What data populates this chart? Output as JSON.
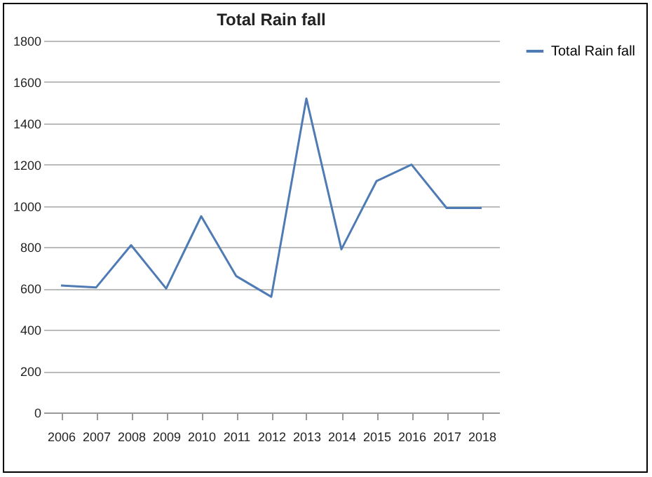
{
  "chart_data": {
    "type": "line",
    "title": "Total Rain fall",
    "categories": [
      "2006",
      "2007",
      "2008",
      "2009",
      "2010",
      "2011",
      "2012",
      "2013",
      "2014",
      "2015",
      "2016",
      "2017",
      "2018"
    ],
    "series": [
      {
        "name": "Total Rain fall",
        "color": "#4f7bb5",
        "values": [
          615,
          605,
          810,
          600,
          950,
          660,
          560,
          1520,
          790,
          1120,
          1200,
          990,
          990
        ]
      }
    ],
    "ylim": [
      0,
      1800
    ],
    "yticks": [
      0,
      200,
      400,
      600,
      800,
      1000,
      1200,
      1400,
      1600,
      1800
    ],
    "grid": "y",
    "legend": "right",
    "marker": "none",
    "line_style": "solid"
  }
}
